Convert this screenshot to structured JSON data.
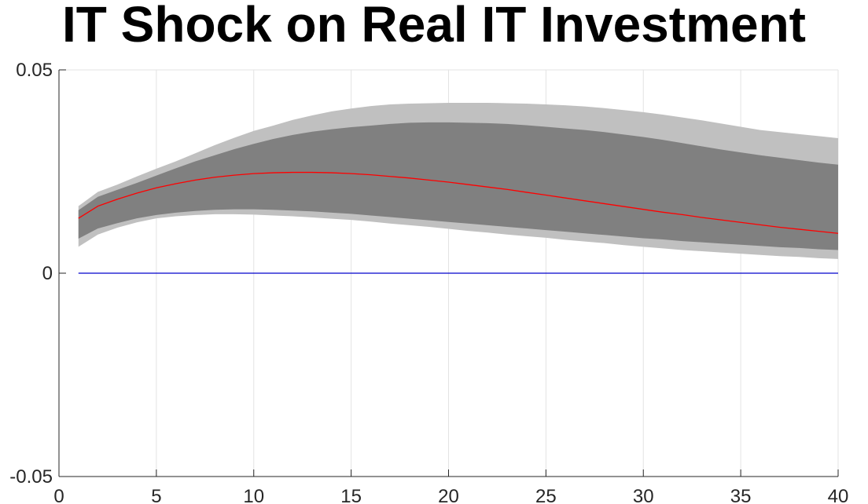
{
  "chart_data": {
    "type": "area",
    "title": "IT Shock on Real IT Investment",
    "xlabel": "",
    "ylabel": "",
    "xlim": [
      0,
      40
    ],
    "ylim": [
      -0.05,
      0.05
    ],
    "xticks": [
      0,
      5,
      10,
      15,
      20,
      25,
      30,
      35,
      40
    ],
    "xtick_labels": [
      "0",
      "5",
      "10",
      "15",
      "20",
      "25",
      "30",
      "35",
      "40"
    ],
    "yticks": [
      -0.05,
      0,
      0.05
    ],
    "ytick_labels": [
      "-0.05",
      "0",
      "0.05"
    ],
    "grid": "vertical",
    "x": [
      1,
      2,
      3,
      4,
      5,
      6,
      7,
      8,
      9,
      10,
      11,
      12,
      13,
      14,
      15,
      16,
      17,
      18,
      19,
      20,
      21,
      22,
      23,
      24,
      25,
      26,
      27,
      28,
      29,
      30,
      31,
      32,
      33,
      34,
      35,
      36,
      37,
      38,
      39,
      40
    ],
    "bands": [
      {
        "kind": "outer",
        "color": "#c0c0c0",
        "upper": [
          0.0165,
          0.02,
          0.0218,
          0.0238,
          0.0257,
          0.0275,
          0.0295,
          0.0315,
          0.0333,
          0.035,
          0.0363,
          0.0377,
          0.0388,
          0.0398,
          0.0405,
          0.0411,
          0.0415,
          0.0417,
          0.0418,
          0.0419,
          0.0419,
          0.0419,
          0.0418,
          0.0417,
          0.0415,
          0.0413,
          0.041,
          0.0406,
          0.0401,
          0.0396,
          0.039,
          0.0383,
          0.0376,
          0.0368,
          0.036,
          0.0352,
          0.0347,
          0.0342,
          0.0337,
          0.0332
        ],
        "lower": [
          0.0065,
          0.0095,
          0.0112,
          0.0125,
          0.0135,
          0.014,
          0.0143,
          0.0145,
          0.0145,
          0.0144,
          0.0142,
          0.014,
          0.0137,
          0.0134,
          0.0131,
          0.0127,
          0.0122,
          0.0118,
          0.0114,
          0.0109,
          0.0104,
          0.01,
          0.0095,
          0.0091,
          0.0087,
          0.0082,
          0.0078,
          0.0074,
          0.0069,
          0.0065,
          0.0061,
          0.0057,
          0.0054,
          0.0051,
          0.0048,
          0.0045,
          0.0042,
          0.004,
          0.0037,
          0.0035
        ]
      },
      {
        "kind": "inner",
        "color": "#808080",
        "upper": [
          0.0155,
          0.0188,
          0.0205,
          0.0222,
          0.024,
          0.0258,
          0.0275,
          0.029,
          0.0305,
          0.0318,
          0.033,
          0.034,
          0.0348,
          0.0354,
          0.0359,
          0.0363,
          0.0367,
          0.037,
          0.0371,
          0.0371,
          0.037,
          0.0369,
          0.0367,
          0.0364,
          0.036,
          0.0356,
          0.0352,
          0.0347,
          0.0341,
          0.0335,
          0.0328,
          0.032,
          0.0312,
          0.0304,
          0.0297,
          0.029,
          0.0284,
          0.0278,
          0.0272,
          0.0267
        ],
        "lower": [
          0.0085,
          0.011,
          0.0123,
          0.0135,
          0.0143,
          0.0149,
          0.0153,
          0.0156,
          0.0157,
          0.0157,
          0.0156,
          0.0154,
          0.0152,
          0.0149,
          0.0146,
          0.0142,
          0.0138,
          0.0134,
          0.013,
          0.0126,
          0.0122,
          0.0118,
          0.0114,
          0.011,
          0.0106,
          0.0102,
          0.0098,
          0.0094,
          0.009,
          0.0086,
          0.0083,
          0.0079,
          0.0076,
          0.0073,
          0.007,
          0.0067,
          0.0064,
          0.0062,
          0.0059,
          0.0057
        ]
      }
    ],
    "series": [
      {
        "color": "#ff0000",
        "values": [
          0.0135,
          0.0165,
          0.0182,
          0.0197,
          0.021,
          0.022,
          0.0229,
          0.0236,
          0.0241,
          0.0245,
          0.0247,
          0.0248,
          0.0248,
          0.0247,
          0.0245,
          0.0242,
          0.0238,
          0.0234,
          0.0229,
          0.0224,
          0.0218,
          0.0212,
          0.0206,
          0.0199,
          0.0192,
          0.0185,
          0.0178,
          0.0171,
          0.0164,
          0.0157,
          0.015,
          0.0144,
          0.0137,
          0.0131,
          0.0125,
          0.0119,
          0.0113,
          0.0108,
          0.0103,
          0.0098
        ]
      },
      {
        "color": "#0000cc",
        "values": [
          0,
          0,
          0,
          0,
          0,
          0,
          0,
          0,
          0,
          0,
          0,
          0,
          0,
          0,
          0,
          0,
          0,
          0,
          0,
          0,
          0,
          0,
          0,
          0,
          0,
          0,
          0,
          0,
          0,
          0,
          0,
          0,
          0,
          0,
          0,
          0,
          0,
          0,
          0,
          0
        ]
      }
    ]
  }
}
